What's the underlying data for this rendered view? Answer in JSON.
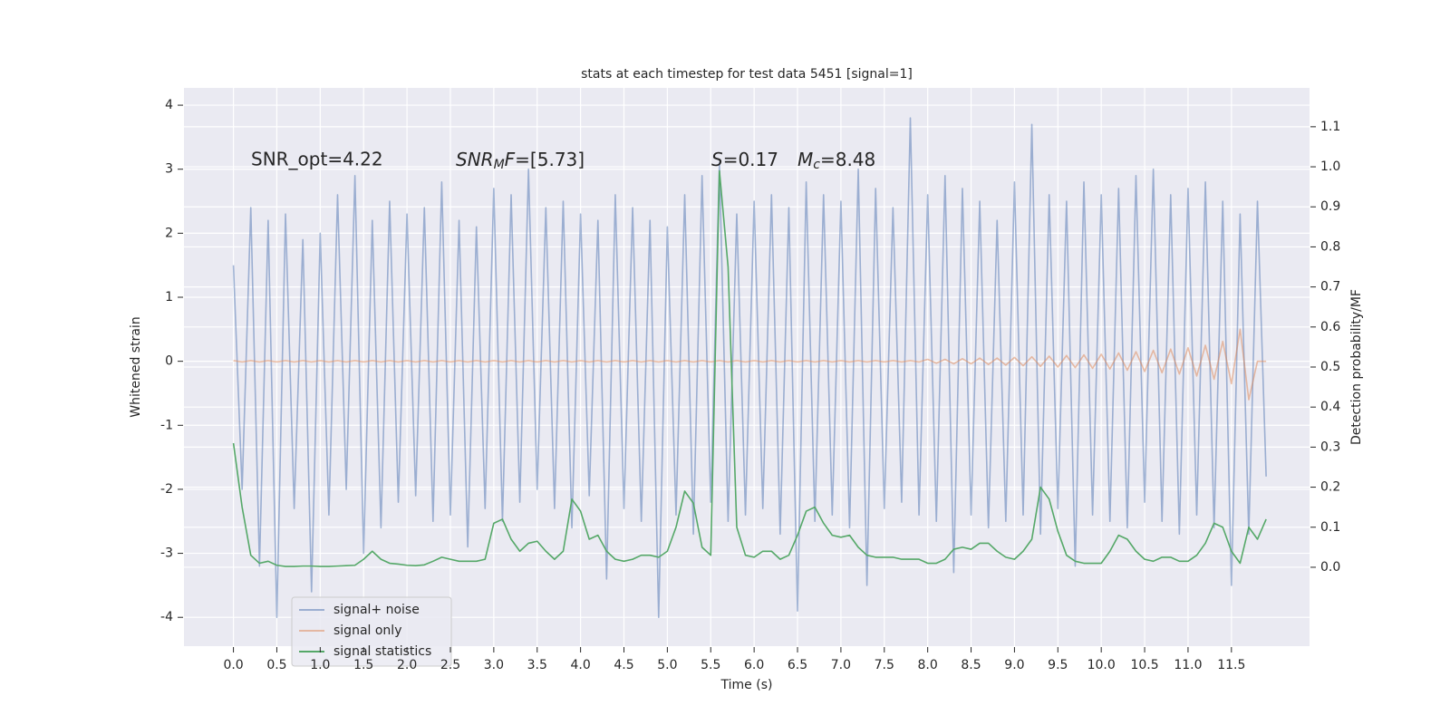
{
  "chart_data": {
    "type": "line",
    "title": "stats at each timestep for test data 5451 [signal=1]",
    "xlabel": "Time (s)",
    "ylabel": "Whitened strain",
    "y2label": "Detection probability/MF",
    "annotations": [
      [
        "SNR_opt=4.22"
      ],
      [
        "SNR",
        "M",
        "F",
        "=[5.73]"
      ],
      [
        "S",
        "=0.17"
      ],
      [
        "M",
        "c",
        "=8.48"
      ]
    ],
    "grid": true,
    "legend": "lower left",
    "xlim": [
      -0.57,
      12.4
    ],
    "ylim": [
      -4.45,
      4.27
    ],
    "y2lim": [
      -0.197,
      1.197
    ],
    "xticks": [
      {
        "value": 0,
        "label": "0.0"
      },
      0.5,
      {
        "value": 1,
        "label": "1.0"
      },
      1.5,
      {
        "value": 2,
        "label": "2.0"
      },
      2.5,
      {
        "value": 3,
        "label": "3.0"
      },
      3.5,
      {
        "value": 4,
        "label": "4.0"
      },
      4.5,
      {
        "value": 5,
        "label": "5.0"
      },
      5.5,
      {
        "value": 6,
        "label": "6.0"
      },
      6.5,
      {
        "value": 7,
        "label": "7.0"
      },
      7.5,
      {
        "value": 8,
        "label": "8.0"
      },
      8.5,
      {
        "value": 9,
        "label": "9.0"
      },
      9.5,
      {
        "value": 10,
        "label": "10.0"
      },
      10.5,
      {
        "value": 11,
        "label": "11.0"
      },
      11.5
    ],
    "yticks": [
      -4,
      -3,
      -2,
      -1,
      0,
      1,
      2,
      3,
      4
    ],
    "y2ticks": [
      {
        "value": 0,
        "label": "0.0"
      },
      0.1,
      0.2,
      0.3,
      0.4,
      0.5,
      0.6,
      0.7,
      0.8,
      0.9,
      {
        "value": 1,
        "label": "1.0"
      },
      1.1
    ],
    "x": [
      0,
      0.1,
      0.2,
      0.3,
      0.4,
      0.5,
      0.6,
      0.7,
      0.8,
      0.9,
      1,
      1.1,
      1.2,
      1.3,
      1.4,
      1.5,
      1.6,
      1.7,
      1.8,
      1.9,
      2,
      2.1,
      2.2,
      2.3,
      2.4,
      2.5,
      2.6,
      2.7,
      2.8,
      2.9,
      3,
      3.1,
      3.2,
      3.3,
      3.4,
      3.5,
      3.6,
      3.7,
      3.8,
      3.9,
      4,
      4.1,
      4.2,
      4.3,
      4.4,
      4.5,
      4.6,
      4.7,
      4.8,
      4.9,
      5,
      5.1,
      5.2,
      5.3,
      5.4,
      5.5,
      5.6,
      5.7,
      5.8,
      5.9,
      6,
      6.1,
      6.2,
      6.3,
      6.4,
      6.5,
      6.6,
      6.7,
      6.8,
      6.9,
      7,
      7.1,
      7.2,
      7.3,
      7.4,
      7.5,
      7.6,
      7.7,
      7.8,
      7.9,
      8,
      8.1,
      8.2,
      8.3,
      8.4,
      8.5,
      8.6,
      8.7,
      8.8,
      8.9,
      9,
      9.1,
      9.2,
      9.3,
      9.4,
      9.5,
      9.6,
      9.7,
      9.8,
      9.9,
      10,
      10.1,
      10.2,
      10.3,
      10.4,
      10.5,
      10.6,
      10.7,
      10.8,
      10.9,
      11,
      11.1,
      11.2,
      11.3,
      11.4,
      11.5,
      11.6,
      11.7,
      11.8,
      11.9
    ],
    "series": [
      {
        "name": "signal+ noise",
        "color": "#4c72b0",
        "alpha": 0.5,
        "axis": "y",
        "values": [
          1.5,
          -2.0,
          2.4,
          -3.2,
          2.2,
          -4.0,
          2.3,
          -2.3,
          1.9,
          -3.6,
          2.0,
          -2.4,
          2.6,
          -2.0,
          2.9,
          -3.0,
          2.2,
          -2.6,
          2.5,
          -2.2,
          2.3,
          -2.1,
          2.4,
          -2.5,
          2.8,
          -2.4,
          2.2,
          -2.9,
          2.1,
          -2.3,
          2.7,
          -2.5,
          2.6,
          -2.2,
          3.0,
          -2.0,
          2.4,
          -2.3,
          2.5,
          -2.6,
          2.3,
          -2.1,
          2.2,
          -3.4,
          2.6,
          -2.3,
          2.4,
          -2.5,
          2.2,
          -4.0,
          2.1,
          -2.4,
          2.6,
          -2.7,
          2.9,
          -2.2,
          3.1,
          -2.5,
          2.3,
          -2.4,
          2.5,
          -2.3,
          2.6,
          -2.7,
          2.4,
          -3.9,
          2.8,
          -2.5,
          2.6,
          -2.4,
          2.5,
          -2.6,
          3.0,
          -3.5,
          2.7,
          -2.3,
          2.4,
          -2.2,
          3.8,
          -2.4,
          2.6,
          -2.5,
          2.9,
          -3.3,
          2.7,
          -2.4,
          2.5,
          -2.6,
          2.2,
          -2.5,
          2.8,
          -2.4,
          3.7,
          -2.7,
          2.6,
          -2.3,
          2.5,
          -3.2,
          2.8,
          -2.4,
          2.6,
          -2.5,
          2.7,
          -2.6,
          2.9,
          -2.2,
          3.0,
          -2.5,
          2.6,
          -2.7,
          2.7,
          -2.4,
          2.8,
          -2.6,
          2.5,
          -3.5,
          2.3,
          -2.7,
          2.5,
          -1.8
        ]
      },
      {
        "name": "signal only",
        "color": "#dd8452",
        "alpha": 0.5,
        "axis": "y",
        "values": [
          0.01,
          -0.01,
          0.01,
          -0.01,
          0.01,
          -0.01,
          0.01,
          -0.01,
          0.01,
          -0.01,
          0.01,
          -0.01,
          0.01,
          -0.01,
          0.01,
          -0.01,
          0.01,
          -0.01,
          0.01,
          -0.01,
          0.01,
          -0.01,
          0.01,
          -0.01,
          0.01,
          -0.01,
          0.01,
          -0.01,
          0.01,
          -0.01,
          0.01,
          -0.01,
          0.01,
          -0.01,
          0.01,
          -0.01,
          0.01,
          -0.01,
          0.01,
          -0.01,
          0.01,
          -0.01,
          0.01,
          -0.01,
          0.01,
          -0.01,
          0.01,
          -0.01,
          0.01,
          -0.01,
          0.01,
          -0.01,
          0.01,
          -0.01,
          0.01,
          -0.01,
          0.01,
          -0.01,
          0.01,
          -0.01,
          0.01,
          -0.01,
          0.01,
          -0.01,
          0.01,
          -0.01,
          0.01,
          -0.01,
          0.01,
          -0.01,
          0.01,
          -0.01,
          0.01,
          -0.01,
          0.01,
          -0.01,
          0.01,
          -0.01,
          0.01,
          -0.01,
          0.03,
          -0.03,
          0.03,
          -0.04,
          0.04,
          -0.04,
          0.05,
          -0.05,
          0.05,
          -0.06,
          0.06,
          -0.07,
          0.07,
          -0.08,
          0.08,
          -0.09,
          0.09,
          -0.1,
          0.1,
          -0.11,
          0.11,
          -0.12,
          0.13,
          -0.14,
          0.15,
          -0.16,
          0.17,
          -0.18,
          0.19,
          -0.2,
          0.21,
          -0.23,
          0.25,
          -0.28,
          0.31,
          -0.35,
          0.5,
          -0.6,
          0,
          0
        ]
      },
      {
        "name": "signal statistics",
        "color": "#55a868",
        "alpha": 1,
        "axis": "y2",
        "values": [
          0.31,
          0.15,
          0.03,
          0.01,
          0.015,
          0.005,
          0.002,
          0.002,
          0.003,
          0.003,
          0.002,
          0.002,
          0.003,
          0.004,
          0.005,
          0.02,
          0.04,
          0.02,
          0.01,
          0.008,
          0.005,
          0.004,
          0.006,
          0.015,
          0.025,
          0.02,
          0.015,
          0.015,
          0.015,
          0.02,
          0.11,
          0.12,
          0.07,
          0.04,
          0.06,
          0.065,
          0.04,
          0.02,
          0.04,
          0.17,
          0.14,
          0.07,
          0.08,
          0.04,
          0.02,
          0.015,
          0.02,
          0.03,
          0.03,
          0.025,
          0.04,
          0.1,
          0.19,
          0.16,
          0.05,
          0.03,
          0.99,
          0.75,
          0.1,
          0.03,
          0.025,
          0.04,
          0.04,
          0.02,
          0.03,
          0.08,
          0.14,
          0.15,
          0.11,
          0.08,
          0.075,
          0.08,
          0.05,
          0.03,
          0.025,
          0.025,
          0.025,
          0.02,
          0.02,
          0.02,
          0.01,
          0.01,
          0.02,
          0.045,
          0.05,
          0.045,
          0.06,
          0.06,
          0.04,
          0.025,
          0.02,
          0.04,
          0.07,
          0.2,
          0.17,
          0.09,
          0.03,
          0.015,
          0.01,
          0.01,
          0.01,
          0.04,
          0.08,
          0.07,
          0.04,
          0.02,
          0.015,
          0.025,
          0.025,
          0.015,
          0.015,
          0.03,
          0.06,
          0.11,
          0.1,
          0.04,
          0.01,
          0.1,
          0.07,
          0.12
        ]
      }
    ]
  }
}
